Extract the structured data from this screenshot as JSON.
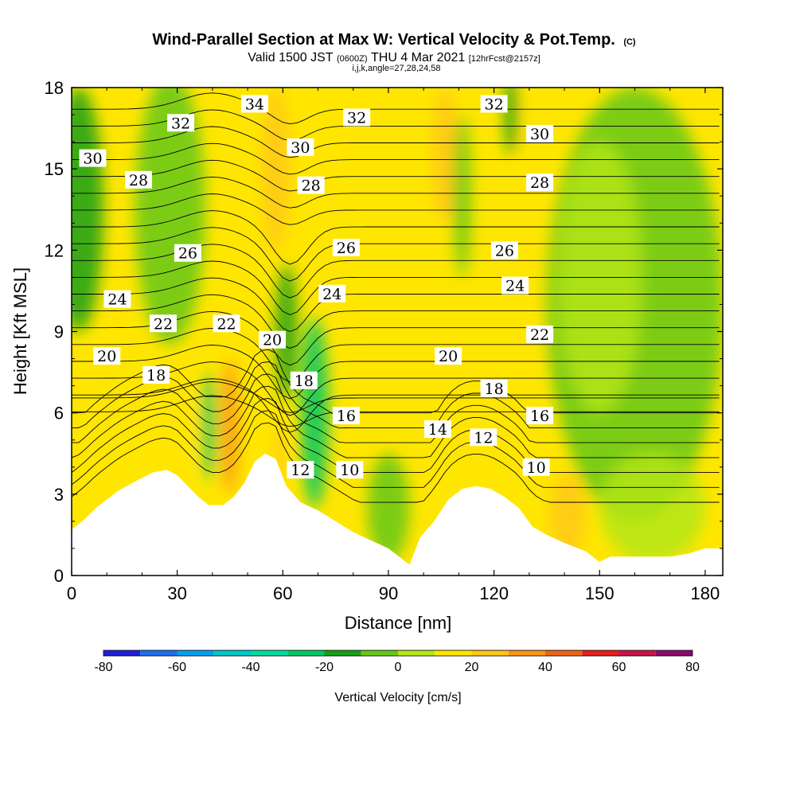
{
  "title": {
    "main": "Wind-Parallel Section at Max W: Vertical Velocity & Pot.Temp.",
    "main_suffix": "(C)",
    "valid_prefix": "Valid 1500 JST",
    "valid_zulu": "(0600Z)",
    "valid_date": "THU 4 Mar 2021",
    "forecast": "[12hrFcst@2157z]",
    "params": "i,j,k,angle=27,28,24,58"
  },
  "chart_data": {
    "type": "heatmap",
    "xlabel": "Distance [nm]",
    "ylabel": "Height [Kft MSL]",
    "xlim": [
      0,
      185
    ],
    "ylim": [
      0,
      18
    ],
    "xticks": [
      "0",
      "30",
      "60",
      "90",
      "120",
      "150",
      "180"
    ],
    "yticks": [
      "0",
      "3",
      "6",
      "9",
      "12",
      "15",
      "18"
    ],
    "colorbar": {
      "title": "Vertical Velocity [cm/s]",
      "tick_labels": [
        "-80",
        "-60",
        "-40",
        "-20",
        "0",
        "20",
        "40",
        "60",
        "80"
      ],
      "levels": [
        -80,
        -70,
        -60,
        -50,
        -40,
        -30,
        -20,
        -10,
        0,
        10,
        20,
        30,
        40,
        50,
        60,
        70,
        80
      ],
      "colors": [
        "#1e1edc",
        "#1e6ef0",
        "#00a0f0",
        "#00c8c8",
        "#00dca0",
        "#00c864",
        "#14a014",
        "#64c814",
        "#b4e614",
        "#ffe600",
        "#ffc814",
        "#fa9614",
        "#f06414",
        "#e61e1e",
        "#c8144b",
        "#8c0a6e"
      ]
    },
    "terrain": [
      [
        0,
        1.7
      ],
      [
        3,
        2.0
      ],
      [
        7,
        2.5
      ],
      [
        10,
        2.8
      ],
      [
        13,
        3.1
      ],
      [
        17,
        3.4
      ],
      [
        20,
        3.6
      ],
      [
        23,
        3.8
      ],
      [
        27,
        3.9
      ],
      [
        30,
        3.7
      ],
      [
        33,
        3.3
      ],
      [
        36,
        2.9
      ],
      [
        39,
        2.6
      ],
      [
        43,
        2.6
      ],
      [
        46,
        2.9
      ],
      [
        49,
        3.4
      ],
      [
        52,
        4.2
      ],
      [
        55,
        4.5
      ],
      [
        58,
        4.3
      ],
      [
        61,
        3.3
      ],
      [
        65,
        2.7
      ],
      [
        70,
        2.4
      ],
      [
        75,
        2.0
      ],
      [
        80,
        1.6
      ],
      [
        85,
        1.3
      ],
      [
        90,
        1.0
      ],
      [
        94,
        0.6
      ],
      [
        96,
        0.4
      ],
      [
        99,
        1.4
      ],
      [
        103,
        2.0
      ],
      [
        107,
        2.8
      ],
      [
        111,
        3.2
      ],
      [
        115,
        3.3
      ],
      [
        119,
        3.2
      ],
      [
        123,
        2.9
      ],
      [
        127,
        2.5
      ],
      [
        131,
        1.8
      ],
      [
        135,
        1.5
      ],
      [
        140,
        1.2
      ],
      [
        146,
        0.9
      ],
      [
        150,
        0.5
      ],
      [
        153,
        0.7
      ],
      [
        158,
        0.7
      ],
      [
        165,
        0.7
      ],
      [
        170,
        0.7
      ],
      [
        175,
        0.8
      ],
      [
        180,
        1.0
      ],
      [
        185,
        1.0
      ]
    ],
    "vertical_velocity_features": [
      {
        "x": 2,
        "y": 13.5,
        "rx": 7,
        "ry": 4.5,
        "value": -15
      },
      {
        "x": 28,
        "y": 13.5,
        "rx": 10,
        "ry": 5,
        "value": -8
      },
      {
        "x": 58,
        "y": 15,
        "rx": 4,
        "ry": 3,
        "value": 25
      },
      {
        "x": 69,
        "y": 6,
        "rx": 4,
        "ry": 3.5,
        "value": -25
      },
      {
        "x": 61,
        "y": 9,
        "rx": 3,
        "ry": 2.5,
        "value": -15
      },
      {
        "x": 32,
        "y": 5.5,
        "rx": 3,
        "ry": 2,
        "value": 18
      },
      {
        "x": 45,
        "y": 5.5,
        "rx": 2.5,
        "ry": 2.5,
        "value": 35
      },
      {
        "x": 39,
        "y": 5.5,
        "rx": 2,
        "ry": 2,
        "value": -22
      },
      {
        "x": 59,
        "y": 4.5,
        "rx": 1.5,
        "ry": 1,
        "value": 25
      },
      {
        "x": 106,
        "y": 15.5,
        "rx": 3.5,
        "ry": 2.5,
        "value": 20
      },
      {
        "x": 111,
        "y": 14,
        "rx": 2.5,
        "ry": 3,
        "value": -10
      },
      {
        "x": 131,
        "y": 16,
        "rx": 2.5,
        "ry": 2.5,
        "value": 15
      },
      {
        "x": 125,
        "y": 17,
        "rx": 2,
        "ry": 1.5,
        "value": -20
      },
      {
        "x": 141,
        "y": 2.2,
        "rx": 5,
        "ry": 1.6,
        "value": 22
      },
      {
        "x": 120,
        "y": 3.8,
        "rx": 8,
        "ry": 0.8,
        "value": 15
      },
      {
        "x": 160,
        "y": 10,
        "rx": 25,
        "ry": 8,
        "value": -5
      },
      {
        "x": 150,
        "y": 11,
        "rx": 12,
        "ry": 5,
        "value": 5
      },
      {
        "x": 90,
        "y": 2.5,
        "rx": 6,
        "ry": 2,
        "value": -5
      },
      {
        "x": 165,
        "y": 2.5,
        "rx": 15,
        "ry": 2,
        "value": 5
      }
    ],
    "contour_labels": [
      {
        "text": "34",
        "x": 52,
        "y": 17.4
      },
      {
        "text": "32",
        "x": 31,
        "y": 16.7
      },
      {
        "text": "32",
        "x": 81,
        "y": 16.9
      },
      {
        "text": "32",
        "x": 120,
        "y": 17.4
      },
      {
        "text": "30",
        "x": 6,
        "y": 15.4
      },
      {
        "text": "30",
        "x": 65,
        "y": 15.8
      },
      {
        "text": "30",
        "x": 133,
        "y": 16.3
      },
      {
        "text": "28",
        "x": 19,
        "y": 14.6
      },
      {
        "text": "28",
        "x": 68,
        "y": 14.4
      },
      {
        "text": "28",
        "x": 133,
        "y": 14.5
      },
      {
        "text": "26",
        "x": 33,
        "y": 11.9
      },
      {
        "text": "26",
        "x": 78,
        "y": 12.1
      },
      {
        "text": "26",
        "x": 123,
        "y": 12.0
      },
      {
        "text": "24",
        "x": 13,
        "y": 10.2
      },
      {
        "text": "24",
        "x": 74,
        "y": 10.4
      },
      {
        "text": "24",
        "x": 126,
        "y": 10.7
      },
      {
        "text": "22",
        "x": 26,
        "y": 9.3
      },
      {
        "text": "22",
        "x": 44,
        "y": 9.3
      },
      {
        "text": "22",
        "x": 133,
        "y": 8.9
      },
      {
        "text": "20",
        "x": 57,
        "y": 8.7
      },
      {
        "text": "20",
        "x": 10,
        "y": 8.1
      },
      {
        "text": "20",
        "x": 107,
        "y": 8.1
      },
      {
        "text": "18",
        "x": 24,
        "y": 7.4
      },
      {
        "text": "18",
        "x": 66,
        "y": 7.2
      },
      {
        "text": "18",
        "x": 120,
        "y": 6.9
      },
      {
        "text": "16",
        "x": 78,
        "y": 5.9
      },
      {
        "text": "16",
        "x": 133,
        "y": 5.9
      },
      {
        "text": "14",
        "x": 104,
        "y": 5.4
      },
      {
        "text": "12",
        "x": 117,
        "y": 5.1
      },
      {
        "text": "12",
        "x": 65,
        "y": 3.9
      },
      {
        "text": "10",
        "x": 79,
        "y": 3.9
      },
      {
        "text": "10",
        "x": 132,
        "y": 4.0
      }
    ]
  }
}
